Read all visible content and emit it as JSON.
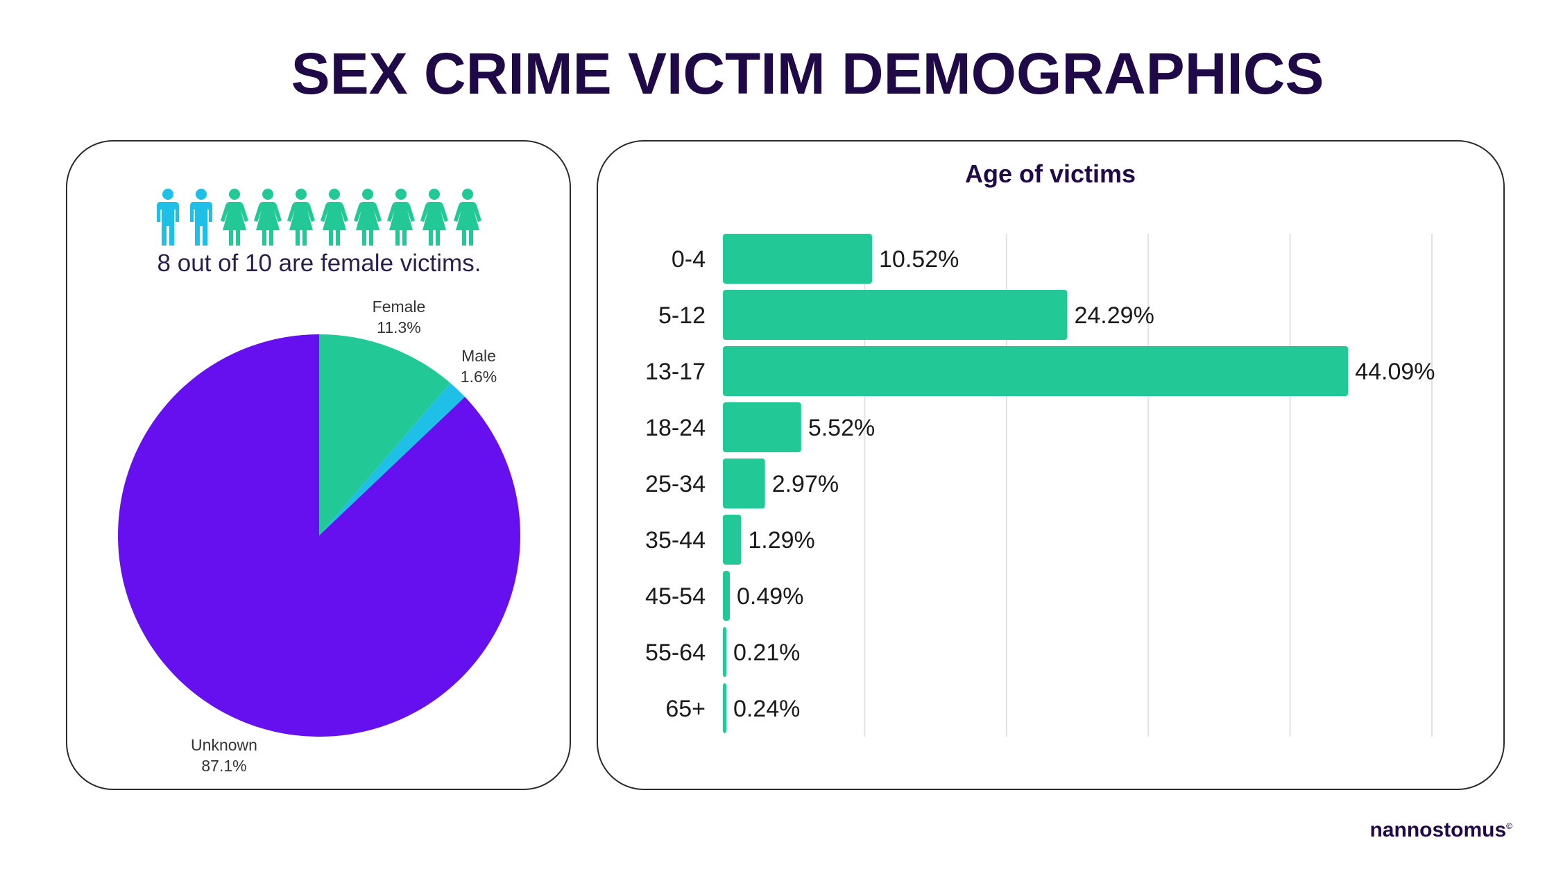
{
  "title": "SEX CRIME VICTIM DEMOGRAPHICS",
  "icons": {
    "caption": "8 out of 10 are female victims.",
    "male_count": 2,
    "female_count": 8,
    "male_icon": "male-person-icon",
    "female_icon": "female-person-icon",
    "male_color": "#1ec0e8",
    "female_color": "#22c997"
  },
  "brand": "nannostomus",
  "chart_data": [
    {
      "type": "pie",
      "title": "",
      "slices": [
        {
          "label": "Female",
          "value_label": "11.3%",
          "value": 11.3,
          "color": "#22c997"
        },
        {
          "label": "Male",
          "value_label": "1.6%",
          "value": 1.6,
          "color": "#1ec0e8"
        },
        {
          "label": "Unknown",
          "value_label": "87.1%",
          "value": 87.1,
          "color": "#6610f0"
        }
      ]
    },
    {
      "type": "bar",
      "orientation": "horizontal",
      "title": "Age of victims",
      "categories": [
        "0-4",
        "5-12",
        "13-17",
        "18-24",
        "25-34",
        "35-44",
        "45-54",
        "55-64",
        "65+"
      ],
      "values": [
        10.52,
        24.29,
        44.09,
        5.52,
        2.97,
        1.29,
        0.49,
        0.21,
        0.24
      ],
      "value_labels": [
        "10.52%",
        "24.29%",
        "44.09%",
        "5.52%",
        "2.97%",
        "1.29%",
        "0.49%",
        "0.21%",
        "0.24%"
      ],
      "xlim": [
        0,
        50
      ],
      "grid": true,
      "color": "#22c997"
    }
  ]
}
